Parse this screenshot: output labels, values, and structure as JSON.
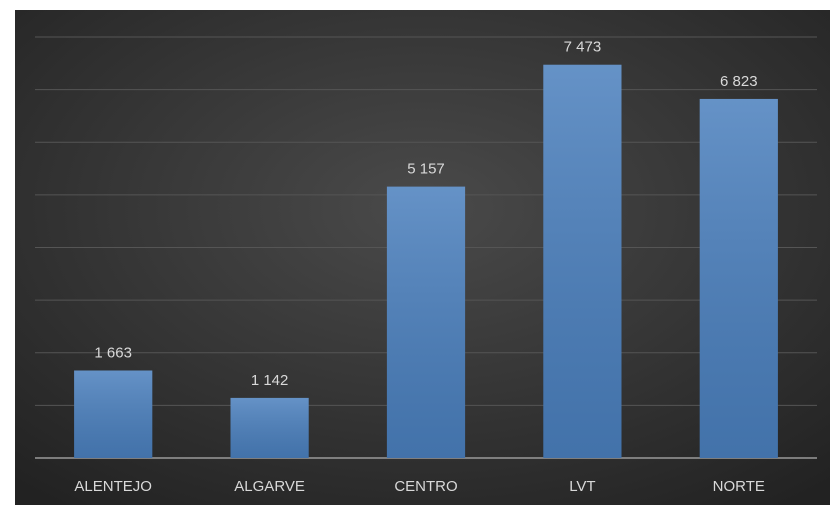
{
  "chart_data": {
    "type": "bar",
    "categories": [
      "ALENTEJO",
      "ALGARVE",
      "CENTRO",
      "LVT",
      "NORTE"
    ],
    "values": [
      1663,
      1142,
      5157,
      7473,
      6823
    ],
    "value_labels": [
      "1 663",
      "1 142",
      "5 157",
      "7 473",
      "6 823"
    ],
    "color": "#4a7fbd",
    "ylim": [
      0,
      8000
    ],
    "yticks": [
      0,
      1000,
      2000,
      3000,
      4000,
      5000,
      6000,
      7000,
      8000
    ],
    "grid": true
  }
}
